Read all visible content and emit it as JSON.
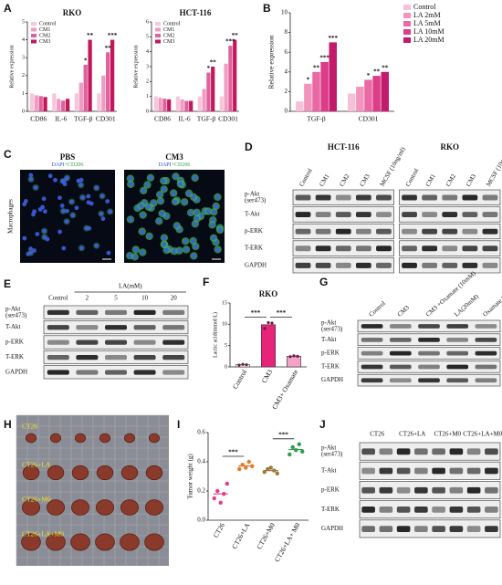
{
  "panel_letters": [
    "A",
    "B",
    "C",
    "D",
    "E",
    "F",
    "G",
    "H",
    "I",
    "J"
  ],
  "chart_data": [
    {
      "type": "bar",
      "title": "RKO",
      "y_label": "Relative expression",
      "categories": [
        "CD86",
        "IL-6",
        "TGF-β",
        "CD301"
      ],
      "series": [
        {
          "name": "Control",
          "color": "#f7c6da",
          "values": [
            1,
            1,
            1,
            1
          ]
        },
        {
          "name": "CM1",
          "color": "#f09cc2",
          "values": [
            0.9,
            0.7,
            1.6,
            2.0
          ]
        },
        {
          "name": "CM2",
          "color": "#e0609c",
          "values": [
            0.85,
            0.6,
            2.6,
            3.3
          ]
        },
        {
          "name": "CM3",
          "color": "#c2185b",
          "values": [
            0.8,
            0.7,
            4.0,
            4.0
          ]
        }
      ],
      "ylim": [
        0,
        5
      ],
      "yticks": [
        0,
        1,
        2,
        3,
        4,
        5
      ],
      "legend": "upper left",
      "annotations": [
        {
          "text": "*",
          "category": "TGF-β",
          "series": "CM2"
        },
        {
          "text": "**",
          "category": "TGF-β",
          "series": "CM3"
        },
        {
          "text": "**",
          "category": "CD301",
          "series": "CM2"
        },
        {
          "text": "***",
          "category": "CD301",
          "series": "CM3"
        }
      ]
    },
    {
      "type": "bar",
      "title": "HCT-116",
      "y_label": "Relative expression",
      "categories": [
        "CD86",
        "IL-6",
        "TGF-β",
        "CD301"
      ],
      "series": [
        {
          "name": "Control",
          "color": "#f7c6da",
          "values": [
            1,
            1,
            1,
            1
          ]
        },
        {
          "name": "CM1",
          "color": "#f09cc2",
          "values": [
            0.9,
            0.8,
            1.5,
            3.2
          ]
        },
        {
          "name": "CM2",
          "color": "#e0609c",
          "values": [
            0.85,
            0.7,
            2.6,
            4.4
          ]
        },
        {
          "name": "CM3",
          "color": "#c2185b",
          "values": [
            0.8,
            0.7,
            3.0,
            4.8
          ]
        }
      ],
      "ylim": [
        0,
        6
      ],
      "yticks": [
        0,
        1,
        2,
        3,
        4,
        5,
        6
      ],
      "legend": "upper left",
      "annotations": [
        {
          "text": "*",
          "category": "TGF-β",
          "series": "CM2"
        },
        {
          "text": "**",
          "category": "TGF-β",
          "series": "CM3"
        },
        {
          "text": "***",
          "category": "CD301",
          "series": "CM2"
        },
        {
          "text": "**",
          "category": "CD301",
          "series": "CM3"
        }
      ]
    },
    {
      "type": "bar",
      "y_label": "Relative expression",
      "categories": [
        "TGF-β",
        "CD301"
      ],
      "series": [
        {
          "name": "Control",
          "color": "#f8c0d6",
          "values": [
            1,
            1.8
          ]
        },
        {
          "name": "LA 2mM",
          "color": "#f294bc",
          "values": [
            2.8,
            2.5
          ]
        },
        {
          "name": "LA 5mM",
          "color": "#ea68a4",
          "values": [
            4.0,
            3.2
          ]
        },
        {
          "name": "LA 10mM",
          "color": "#dc3c88",
          "values": [
            5.0,
            3.6
          ]
        },
        {
          "name": "LA 20mM",
          "color": "#c21a6d",
          "values": [
            7.0,
            4.0
          ]
        }
      ],
      "ylim": [
        0,
        10
      ],
      "yticks": [
        0,
        2,
        4,
        6,
        8,
        10
      ],
      "legend": "right",
      "annotations": [
        {
          "text": "*",
          "category": "TGF-β",
          "series": "LA 2mM"
        },
        {
          "text": "**",
          "category": "TGF-β",
          "series": "LA 5mM"
        },
        {
          "text": "***",
          "category": "TGF-β",
          "series": "LA 10mM"
        },
        {
          "text": "***",
          "category": "TGF-β",
          "series": "LA 20mM"
        },
        {
          "text": "*",
          "category": "CD301",
          "series": "LA 5mM"
        },
        {
          "text": "**",
          "category": "CD301",
          "series": "LA 10mM"
        },
        {
          "text": "**",
          "category": "CD301",
          "series": "LA 20mM"
        }
      ]
    },
    {
      "type": "bar",
      "title": "RKO",
      "y_label": "Lactic acid(mmol/L)",
      "categories": [
        "Control",
        "CM3",
        "CM3+ Oxamate"
      ],
      "values": [
        0.5,
        9.9,
        2.5
      ],
      "points": [
        [
          0.4,
          0.6,
          0.5
        ],
        [
          9.0,
          10.4,
          10.3
        ],
        [
          2.4,
          2.6,
          2.5
        ]
      ],
      "colors": [
        "#ffffff",
        "#e8247a",
        "#f4a3c6"
      ],
      "point_color": "#6a1b3f",
      "ylim": [
        0,
        15
      ],
      "yticks": [
        0,
        5,
        10,
        15
      ],
      "annotations": [
        {
          "text": "***",
          "from": "Control",
          "to": "CM3"
        },
        {
          "text": "***",
          "from": "CM3",
          "to": "CM3+ Oxamate"
        }
      ]
    },
    {
      "type": "strip",
      "y_label": "Tumor weight (g)",
      "categories": [
        "CT26",
        "CT26+LA",
        "CT26+M0",
        "CT26+LA+ M0"
      ],
      "values": [
        [
          0.15,
          0.2,
          0.12,
          0.18,
          0.25
        ],
        [
          0.35,
          0.38,
          0.36,
          0.4,
          0.37
        ],
        [
          0.33,
          0.35,
          0.36,
          0.34,
          0.32
        ],
        [
          0.45,
          0.5,
          0.48,
          0.52,
          0.47
        ]
      ],
      "colors": [
        "#e8388a",
        "#e07b2a",
        "#9b7d3a",
        "#2e9e4a"
      ],
      "ylim": [
        0,
        0.6
      ],
      "yticks": [
        {
          "value": 0,
          "label": "0.0"
        },
        0.2,
        0.4,
        0.6
      ],
      "annotations": [
        {
          "text": "***",
          "from": "CT26",
          "to": "CT26+LA"
        },
        {
          "text": "***",
          "from": "CT26+M0",
          "to": "CT26+LA+ M0"
        }
      ]
    }
  ],
  "micrographs": {
    "conditions": [
      "PBS",
      "CM3"
    ],
    "stain": [
      "DAPI",
      "+CD206"
    ],
    "side_label": "Macrophages"
  },
  "blots": [
    {
      "groups": [
        {
          "title": "HCT-116",
          "lanes": [
            "Control",
            "CM1",
            "CM2",
            "CM3",
            "MCSF (10ng/ml)"
          ]
        },
        {
          "title": "RKO",
          "lanes": [
            "Control",
            "CM1",
            "CM2",
            "CM3",
            "MCSF (10ng/ml)"
          ]
        }
      ],
      "rows": [
        [
          "p-Akt",
          "(ser473)"
        ],
        [
          "T-Akt"
        ],
        [
          "p-ERK"
        ],
        [
          "T-ERK"
        ],
        [
          "GAPDH"
        ]
      ]
    },
    {
      "header": "LA(mM)",
      "groups": [
        {
          "lanes": [
            "Control",
            "2",
            "5",
            "10",
            "20"
          ]
        }
      ],
      "rows": [
        [
          "p-Akt",
          "(ser473)"
        ],
        [
          "T-Akt"
        ],
        [
          "p-ERK"
        ],
        [
          "T-ERK"
        ],
        [
          "GAPDH"
        ]
      ]
    },
    {
      "groups": [
        {
          "lanes": [
            "Control",
            "CM3",
            "CM3 +Oxamate (10mM)",
            "LA(20mM)",
            "Oxamate (10mM)"
          ]
        }
      ],
      "rows": [
        [
          "p-Akt",
          "(ser473)"
        ],
        [
          "T-Akt"
        ],
        [
          "p-ERK"
        ],
        [
          "T-ERK"
        ],
        [
          "GAPDH"
        ]
      ]
    },
    {
      "groups": [
        {
          "lanes": [
            "CT26",
            "CT26+LA",
            "CT26+M0",
            "CT26+LA+M0"
          ]
        }
      ],
      "rows": [
        [
          "p-Akt",
          "(ser473)"
        ],
        [
          "T-Akt"
        ],
        [
          "p-ERK"
        ],
        [
          "T-ERK"
        ],
        [
          "GAPDH"
        ]
      ]
    }
  ],
  "tumor_photo": {
    "labels": [
      "CT26",
      "CT26+LA",
      "CT26+M0",
      "CT26+LA+M0"
    ]
  }
}
